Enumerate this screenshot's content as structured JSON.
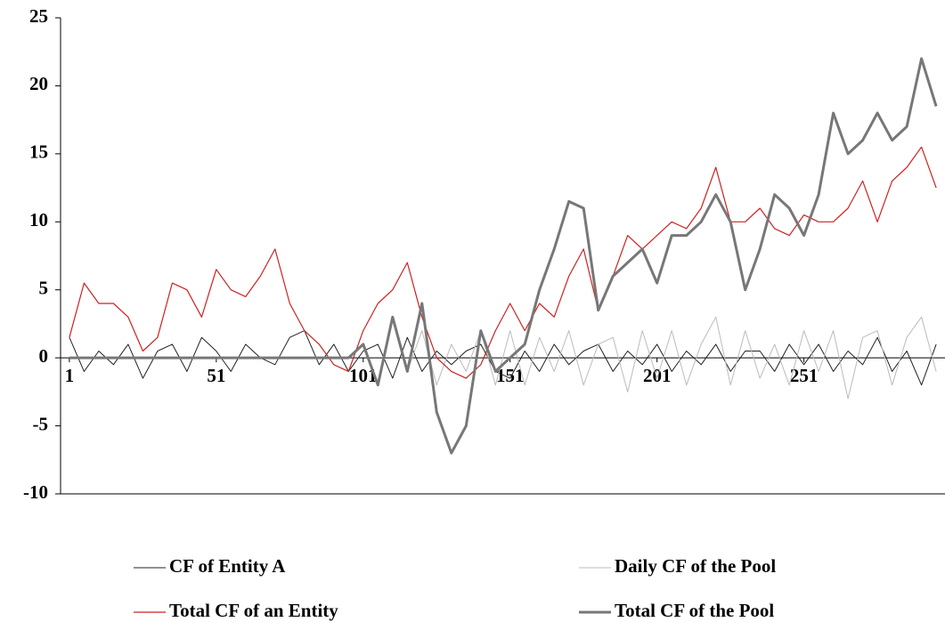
{
  "chart_data": {
    "type": "line",
    "x": [
      1,
      6,
      11,
      16,
      21,
      26,
      31,
      36,
      41,
      46,
      51,
      56,
      61,
      66,
      71,
      76,
      81,
      86,
      91,
      96,
      101,
      106,
      111,
      116,
      121,
      126,
      131,
      136,
      141,
      146,
      151,
      156,
      161,
      166,
      171,
      176,
      181,
      186,
      191,
      196,
      201,
      206,
      211,
      216,
      221,
      226,
      231,
      236,
      241,
      246,
      251,
      256,
      261,
      266,
      271,
      276,
      281,
      286,
      291,
      296
    ],
    "xlim": [
      -2,
      299
    ],
    "xticks": [
      1,
      51,
      101,
      151,
      201,
      251
    ],
    "ylim": [
      -10,
      25
    ],
    "yticks": [
      25,
      20,
      15,
      10,
      5,
      0,
      -5,
      -10
    ],
    "series": [
      {
        "name": "CF of Entity A",
        "color": "#222222",
        "width": 1,
        "values": [
          1.5,
          -1,
          0.5,
          -0.5,
          1,
          -1.5,
          0.5,
          1,
          -1,
          1.5,
          0.5,
          -1,
          1,
          0,
          -0.5,
          1.5,
          2,
          -0.5,
          1,
          -1,
          0.5,
          1,
          -1.5,
          1.5,
          -1,
          0.5,
          -0.5,
          0.5,
          1,
          -1,
          -1.5,
          0.5,
          -1,
          1,
          -0.5,
          0.5,
          1,
          -1,
          0.5,
          -0.5,
          1,
          -1,
          0.5,
          -0.5,
          1,
          -1,
          0.5,
          0.5,
          -1,
          1,
          -0.5,
          1,
          -1,
          0.5,
          -0.5,
          1.5,
          -1,
          0.5,
          -2,
          1
        ]
      },
      {
        "name": "Daily CF of the Pool",
        "color": "#bbbbbb",
        "width": 1,
        "values": [
          0,
          0,
          0,
          0,
          0,
          0,
          0,
          0,
          0,
          0,
          0,
          0,
          0,
          0,
          0,
          0,
          0,
          0,
          0,
          0,
          1,
          -2,
          3,
          -1,
          2,
          -2,
          1,
          -1,
          2,
          -2,
          2,
          -2,
          1.5,
          -1,
          2,
          -2,
          1,
          1.5,
          -2.5,
          2,
          -1.5,
          2,
          -2,
          1,
          3,
          -2,
          2,
          -1.5,
          1,
          -2,
          2,
          -1,
          2,
          -3,
          1.5,
          2,
          -2,
          1.5,
          3,
          -1
        ]
      },
      {
        "name": "Total CF of an Entity",
        "color": "#cc2222",
        "width": 1.2,
        "values": [
          1.5,
          5.5,
          4,
          4,
          3,
          0.5,
          1.5,
          5.5,
          5,
          3,
          6.5,
          5,
          4.5,
          6,
          8,
          4,
          2,
          1,
          -0.5,
          -1,
          2,
          4,
          5,
          7,
          3,
          0,
          -1,
          -1.5,
          -0.5,
          2,
          4,
          2,
          4,
          3,
          6,
          8,
          3.5,
          6,
          9,
          8,
          9,
          10,
          9.5,
          11,
          14,
          10,
          10,
          11,
          9.5,
          9,
          10.5,
          10,
          10,
          11,
          13,
          10,
          13,
          14,
          15.5,
          12.5
        ]
      },
      {
        "name": "Total CF of the Pool",
        "color": "#777777",
        "width": 3,
        "values": [
          0,
          0,
          0,
          0,
          0,
          0,
          0,
          0,
          0,
          0,
          0,
          0,
          0,
          0,
          0,
          0,
          0,
          0,
          0,
          0,
          1,
          -2,
          3,
          -1,
          4,
          -4,
          -7,
          -5,
          2,
          -1,
          0,
          1,
          5,
          8,
          11.5,
          11,
          3.5,
          6,
          7,
          8,
          5.5,
          9,
          9,
          10,
          12,
          10,
          5,
          8,
          12,
          11,
          9,
          12,
          18,
          15,
          16,
          18,
          16,
          17,
          22,
          18.5
        ]
      }
    ]
  }
}
